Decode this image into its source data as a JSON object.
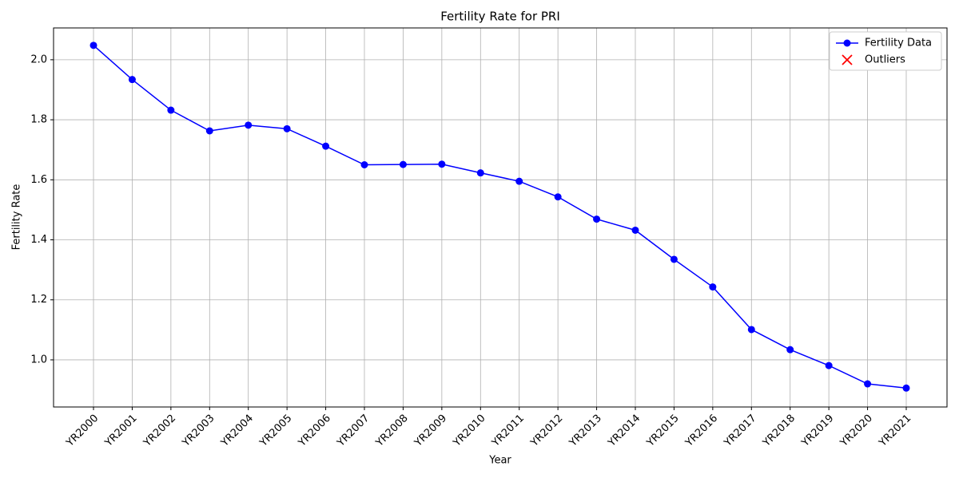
{
  "chart_data": {
    "type": "line",
    "title": "Fertility Rate for PRI",
    "x_label": "Year",
    "y_label": "Fertility Rate",
    "categories": [
      "YR2000",
      "YR2001",
      "YR2002",
      "YR2003",
      "YR2004",
      "YR2005",
      "YR2006",
      "YR2007",
      "YR2008",
      "YR2009",
      "YR2010",
      "YR2011",
      "YR2012",
      "YR2013",
      "YR2014",
      "YR2015",
      "YR2016",
      "YR2017",
      "YR2018",
      "YR2019",
      "YR2020",
      "YR2021"
    ],
    "series": [
      {
        "name": "Fertility Data",
        "color": "#0000ff",
        "marker": "o",
        "values": [
          2.048,
          1.934,
          1.832,
          1.763,
          1.782,
          1.77,
          1.712,
          1.65,
          1.651,
          1.652,
          1.623,
          1.595,
          1.543,
          1.469,
          1.432,
          1.335,
          1.243,
          1.101,
          1.034,
          0.981,
          0.92,
          0.906
        ]
      },
      {
        "name": "Outliers",
        "color": "#ff0000",
        "marker": "x",
        "values": [
          null,
          null,
          null,
          null,
          null,
          null,
          null,
          null,
          null,
          null,
          null,
          null,
          null,
          null,
          null,
          null,
          null,
          null,
          null,
          null,
          null,
          null
        ]
      }
    ],
    "ylim": [
      0.843,
      2.106
    ],
    "yticks": [
      {
        "value": 1,
        "label": "1.0"
      },
      1.2,
      1.4,
      1.6,
      1.8,
      {
        "value": 2,
        "label": "2.0"
      }
    ],
    "grid": true,
    "legend": "upper right"
  }
}
